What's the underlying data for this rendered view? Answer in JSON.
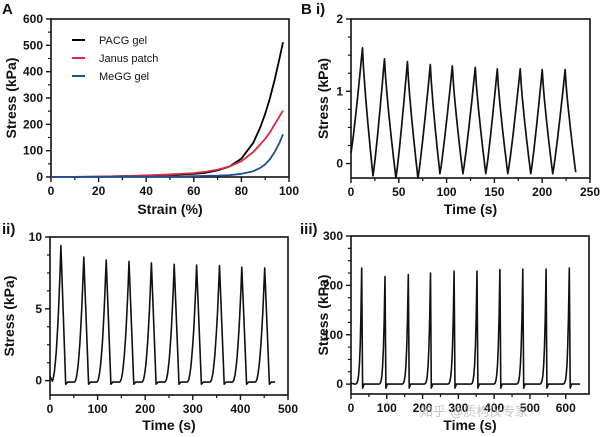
{
  "watermark": "知乎 @质构仪专家",
  "chart_data": [
    {
      "id": "A",
      "type": "line",
      "panel_label": "A",
      "title": "",
      "xlabel": "Strain (%)",
      "ylabel": "Stress (kPa)",
      "xlim": [
        0,
        100
      ],
      "ylim": [
        0,
        600
      ],
      "xticks": [
        0,
        20,
        40,
        60,
        80,
        100
      ],
      "yticks": [
        0,
        100,
        200,
        300,
        400,
        500,
        600
      ],
      "grid": false,
      "legend_position": "top-left",
      "series": [
        {
          "name": "PACG gel",
          "color": "#000000",
          "x": [
            0,
            10,
            20,
            30,
            40,
            50,
            60,
            65,
            70,
            75,
            80,
            85,
            88,
            90,
            92,
            94,
            96,
            97.5
          ],
          "y": [
            0,
            0.5,
            1.5,
            3,
            5,
            8,
            12,
            16,
            25,
            40,
            70,
            130,
            190,
            240,
            300,
            370,
            450,
            512
          ]
        },
        {
          "name": "Janus patch",
          "color": "#e0283c",
          "x": [
            0,
            10,
            20,
            30,
            40,
            50,
            60,
            65,
            70,
            75,
            80,
            85,
            88,
            90,
            92,
            94,
            96,
            97.5
          ],
          "y": [
            0,
            0.5,
            1.5,
            3,
            6,
            10,
            15,
            20,
            28,
            40,
            60,
            95,
            125,
            145,
            170,
            200,
            230,
            252
          ]
        },
        {
          "name": "MeGG gel",
          "color": "#1f4e9c",
          "x": [
            0,
            10,
            20,
            30,
            40,
            50,
            60,
            65,
            70,
            75,
            80,
            85,
            88,
            90,
            92,
            94,
            96,
            97.5
          ],
          "y": [
            0,
            0.2,
            0.5,
            1,
            1.5,
            2,
            3,
            4,
            5,
            7,
            12,
            22,
            35,
            48,
            68,
            95,
            130,
            162
          ]
        }
      ]
    },
    {
      "id": "B-i",
      "type": "line",
      "panel_label": "B i)",
      "xlabel": "Time (s)",
      "ylabel": "Stress (kPa)",
      "xlim": [
        0,
        250
      ],
      "ylim": [
        -0.2,
        2
      ],
      "xticks": [
        0,
        50,
        100,
        150,
        200,
        250
      ],
      "yticks": [
        0,
        1,
        2
      ],
      "grid": false,
      "cycles": {
        "peak_times": [
          12,
          35,
          59,
          83,
          106,
          130,
          153,
          177,
          200,
          224
        ],
        "peak_values": [
          1.6,
          1.45,
          1.41,
          1.37,
          1.35,
          1.33,
          1.31,
          1.31,
          1.3,
          1.3
        ],
        "valley_times": [
          0,
          23,
          47,
          70,
          93,
          117,
          141,
          164,
          188,
          211,
          235
        ],
        "valley_values": [
          0.15,
          -0.17,
          -0.2,
          -0.2,
          -0.14,
          -0.14,
          -0.14,
          -0.14,
          -0.14,
          -0.14,
          -0.12
        ]
      },
      "series": [
        {
          "name": "Janus patch",
          "color": "#000000"
        }
      ]
    },
    {
      "id": "B-ii",
      "type": "line",
      "panel_label": "ii)",
      "xlabel": "Time (s)",
      "ylabel": "Stress (kPa)",
      "xlim": [
        0,
        500
      ],
      "ylim": [
        -1,
        10
      ],
      "xticks": [
        0,
        100,
        200,
        300,
        400,
        500
      ],
      "yticks": [
        0,
        5,
        10
      ],
      "grid": false,
      "cycles": {
        "peak_times": [
          23,
          71,
          118,
          166,
          213,
          261,
          308,
          356,
          403,
          451
        ],
        "peak_values": [
          9.4,
          8.6,
          8.4,
          8.3,
          8.2,
          8.1,
          8.05,
          8.0,
          7.9,
          7.85
        ],
        "baseline": -0.1,
        "end_time": 473
      },
      "series": [
        {
          "name": "Janus patch",
          "color": "#000000"
        }
      ]
    },
    {
      "id": "B-iii",
      "type": "line",
      "panel_label": "iii)",
      "xlabel": "Time (s)",
      "ylabel": "Stress (kPa)",
      "xlim": [
        0,
        665
      ],
      "ylim": [
        -20,
        300
      ],
      "xticks": [
        0,
        100,
        200,
        300,
        400,
        500,
        600
      ],
      "yticks": [
        0,
        100,
        200,
        300
      ],
      "grid": false,
      "cycles": {
        "peak_times": [
          30,
          95,
          160,
          222,
          288,
          352,
          416,
          480,
          545,
          610
        ],
        "peak_values": [
          235,
          218,
          222,
          225,
          229,
          229,
          232,
          233,
          233,
          235
        ],
        "baseline": 0,
        "end_time": 640
      },
      "series": [
        {
          "name": "Janus patch",
          "color": "#000000"
        }
      ]
    }
  ]
}
